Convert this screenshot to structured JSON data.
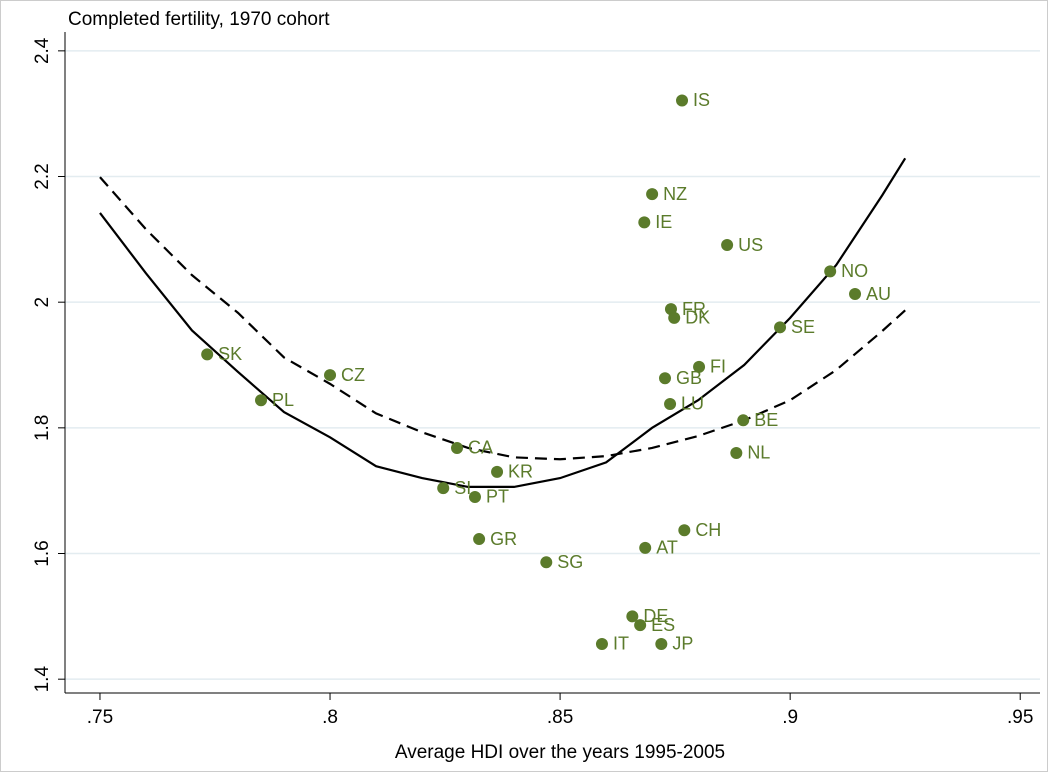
{
  "chart_data": {
    "type": "scatter",
    "y_title": "Completed fertility, 1970 cohort",
    "x_title": "Average HDI over the years 1995-2005",
    "xlim": [
      0.7424,
      0.9543
    ],
    "ylim": [
      1.378,
      2.43
    ],
    "xticks": [
      {
        "value": 0.75,
        "label": ".75"
      },
      {
        "value": 0.8,
        "label": ".8"
      },
      {
        "value": 0.85,
        "label": ".85"
      },
      {
        "value": 0.9,
        "label": ".9"
      },
      {
        "value": 0.95,
        "label": ".95"
      }
    ],
    "yticks": [
      1.4,
      1.6,
      1.8,
      2,
      2.2,
      2.4
    ],
    "grid": true,
    "color": "#5b7b2b",
    "labels": [
      "SK",
      "PL",
      "CZ",
      "CA",
      "KR",
      "SI",
      "PT",
      "GR",
      "SG",
      "IT",
      "DE",
      "ES",
      "JP",
      "AT",
      "CH",
      "LU",
      "GB",
      "FI",
      "FR",
      "DK",
      "IE",
      "NZ",
      "IS",
      "US",
      "NO",
      "AU",
      "SE",
      "BE",
      "NL"
    ],
    "x": [
      0.7733,
      0.785,
      0.8,
      0.8276,
      0.8363,
      0.8246,
      0.8315,
      0.8324,
      0.847,
      0.8591,
      0.8657,
      0.8674,
      0.872,
      0.8685,
      0.877,
      0.8739,
      0.8728,
      0.8802,
      0.8741,
      0.8748,
      0.8683,
      0.87,
      0.8765,
      0.8863,
      0.9087,
      0.9141,
      0.8978,
      0.8898,
      0.8883
    ],
    "values": [
      1.917,
      1.844,
      1.884,
      1.768,
      1.73,
      1.704,
      1.69,
      1.623,
      1.586,
      1.456,
      1.5,
      1.486,
      1.456,
      1.609,
      1.637,
      1.838,
      1.879,
      1.897,
      1.989,
      1.975,
      2.127,
      2.172,
      2.321,
      2.091,
      2.049,
      2.013,
      1.96,
      1.812,
      1.76
    ],
    "fits": [
      {
        "dash": false,
        "x": [
          0.75,
          0.76,
          0.77,
          0.78,
          0.79,
          0.8,
          0.81,
          0.82,
          0.83,
          0.84,
          0.85,
          0.86,
          0.87,
          0.88,
          0.89,
          0.9,
          0.91,
          0.92,
          0.925
        ],
        "values": [
          2.142,
          2.046,
          1.955,
          1.889,
          1.825,
          1.785,
          1.739,
          1.72,
          1.706,
          1.706,
          1.72,
          1.745,
          1.8,
          1.844,
          1.9,
          1.975,
          2.059,
          2.17,
          2.229
        ]
      },
      {
        "dash": true,
        "x": [
          0.75,
          0.76,
          0.77,
          0.78,
          0.79,
          0.8,
          0.81,
          0.82,
          0.83,
          0.84,
          0.85,
          0.86,
          0.87,
          0.88,
          0.89,
          0.9,
          0.91,
          0.92,
          0.925
        ],
        "values": [
          2.199,
          2.116,
          2.043,
          1.983,
          1.912,
          1.87,
          1.823,
          1.793,
          1.768,
          1.753,
          1.75,
          1.755,
          1.768,
          1.787,
          1.812,
          1.844,
          1.892,
          1.954,
          1.987
        ]
      }
    ]
  }
}
